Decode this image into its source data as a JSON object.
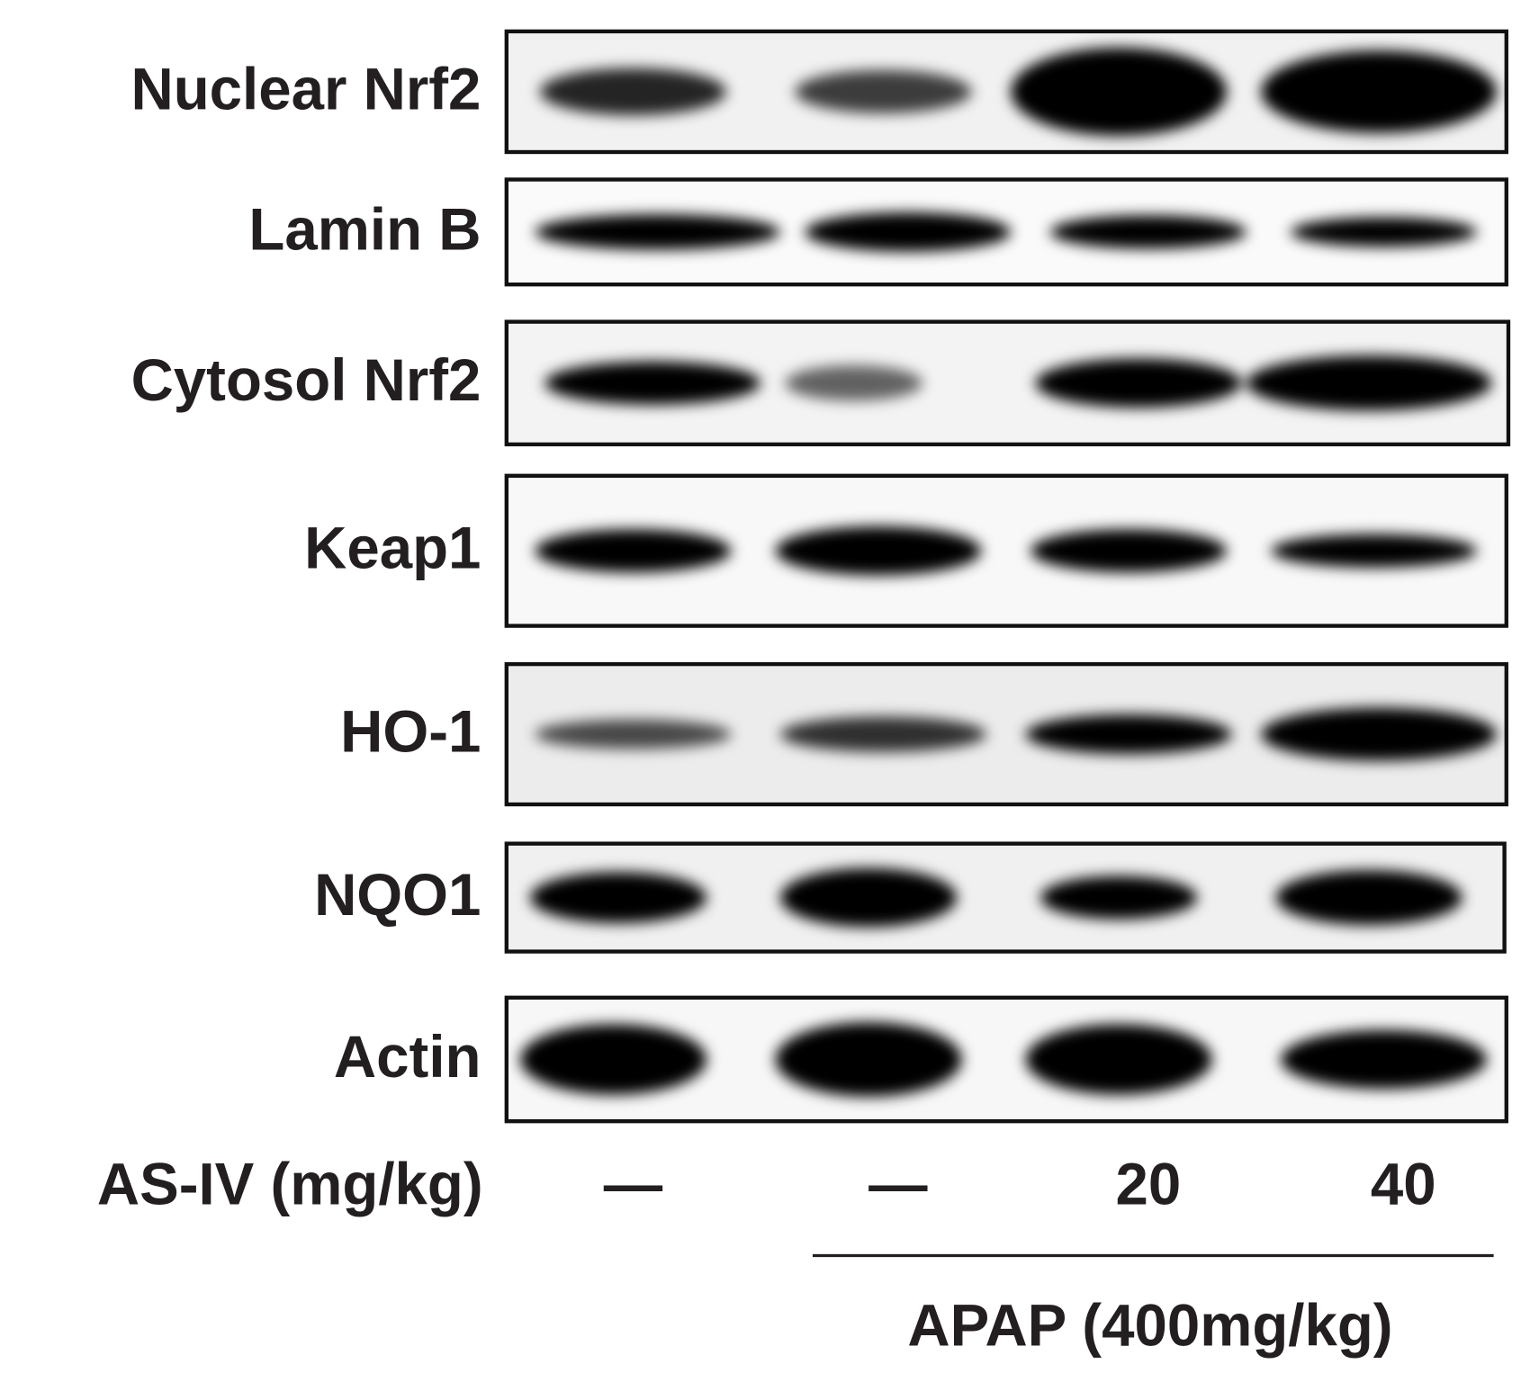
{
  "blot": {
    "rows": [
      "Nuclear Nrf2",
      "Lamin B",
      "Cytosol Nrf2",
      "Keap1",
      "HO-1",
      "NQO1",
      "Actin"
    ]
  },
  "treatment": {
    "label": "AS-IV (mg/kg)",
    "doses": [
      "—",
      "—",
      "20",
      "40"
    ]
  },
  "group": {
    "label": "APAP (400mg/kg)"
  }
}
